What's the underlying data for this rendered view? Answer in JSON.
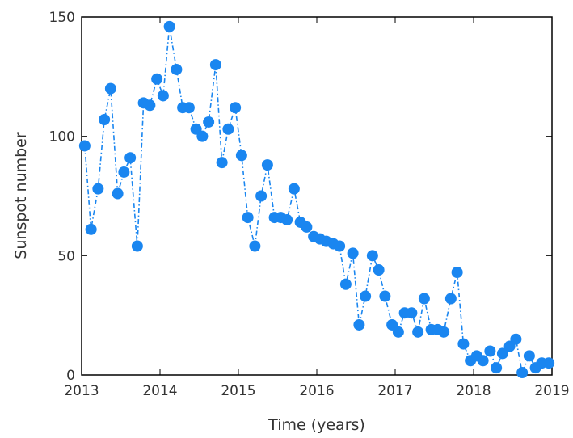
{
  "chart_data": {
    "type": "line",
    "xlabel": "Time (years)",
    "ylabel": "Sunspot number",
    "xlim": [
      2013,
      2019
    ],
    "ylim": [
      0,
      150
    ],
    "xticks": [
      2013,
      2014,
      2015,
      2016,
      2017,
      2018,
      2019
    ],
    "yticks": [
      0,
      50,
      100,
      150
    ],
    "grid": false,
    "legend": "none",
    "series": [
      {
        "color": "#1a86f0",
        "line_style": "dash-dot",
        "marker": "filled-circle",
        "x": [
          2013.04,
          2013.12,
          2013.21,
          2013.29,
          2013.37,
          2013.46,
          2013.54,
          2013.62,
          2013.71,
          2013.79,
          2013.87,
          2013.96,
          2014.04,
          2014.12,
          2014.21,
          2014.29,
          2014.37,
          2014.46,
          2014.54,
          2014.62,
          2014.71,
          2014.79,
          2014.87,
          2014.96,
          2015.04,
          2015.12,
          2015.21,
          2015.29,
          2015.37,
          2015.46,
          2015.54,
          2015.62,
          2015.71,
          2015.79,
          2015.87,
          2015.96,
          2016.04,
          2016.12,
          2016.21,
          2016.29,
          2016.37,
          2016.46,
          2016.54,
          2016.62,
          2016.71,
          2016.79,
          2016.87,
          2016.96,
          2017.04,
          2017.12,
          2017.21,
          2017.29,
          2017.37,
          2017.46,
          2017.54,
          2017.62,
          2017.71,
          2017.79,
          2017.87,
          2017.96,
          2018.04,
          2018.12,
          2018.21,
          2018.29,
          2018.37,
          2018.46,
          2018.54,
          2018.62,
          2018.71,
          2018.79,
          2018.87,
          2018.96
        ],
        "y": [
          96,
          61,
          78,
          107,
          120,
          76,
          85,
          91,
          54,
          114,
          113,
          124,
          117,
          146,
          128,
          112,
          112,
          103,
          100,
          106,
          130,
          89,
          103,
          112,
          92,
          66,
          54,
          75,
          88,
          66,
          66,
          65,
          78,
          64,
          62,
          58,
          57,
          56,
          55,
          54,
          38,
          51,
          21,
          33,
          50,
          44,
          33,
          21,
          18,
          26,
          26,
          18,
          32,
          19,
          19,
          18,
          32,
          43,
          13,
          6,
          8,
          6,
          10,
          3,
          9,
          12,
          15,
          1,
          8,
          3,
          5,
          5
        ]
      }
    ]
  }
}
